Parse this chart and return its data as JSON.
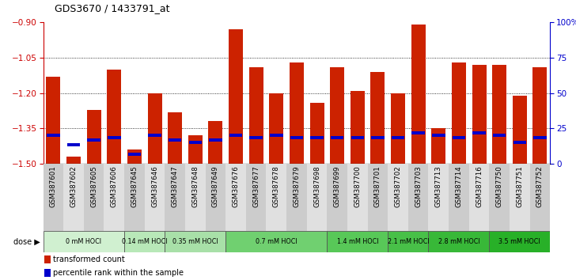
{
  "title": "GDS3670 / 1433791_at",
  "samples": [
    "GSM387601",
    "GSM387602",
    "GSM387605",
    "GSM387606",
    "GSM387645",
    "GSM387646",
    "GSM387647",
    "GSM387648",
    "GSM387649",
    "GSM387676",
    "GSM387677",
    "GSM387678",
    "GSM387679",
    "GSM387698",
    "GSM387699",
    "GSM387700",
    "GSM387701",
    "GSM387702",
    "GSM387703",
    "GSM387713",
    "GSM387714",
    "GSM387716",
    "GSM387750",
    "GSM387751",
    "GSM387752"
  ],
  "red_values": [
    -1.13,
    -1.47,
    -1.27,
    -1.1,
    -1.44,
    -1.2,
    -1.28,
    -1.38,
    -1.32,
    -0.93,
    -1.09,
    -1.2,
    -1.07,
    -1.24,
    -1.09,
    -1.19,
    -1.11,
    -1.2,
    -0.91,
    -1.35,
    -1.07,
    -1.08,
    -1.08,
    -1.21,
    -1.09
  ],
  "blue_values": [
    -1.38,
    -1.42,
    -1.4,
    -1.39,
    -1.46,
    -1.38,
    -1.4,
    -1.41,
    -1.4,
    -1.38,
    -1.39,
    -1.38,
    -1.39,
    -1.39,
    -1.39,
    -1.39,
    -1.39,
    -1.39,
    -1.37,
    -1.38,
    -1.39,
    -1.37,
    -1.38,
    -1.41,
    -1.39
  ],
  "ylim_left": [
    -1.5,
    -0.9
  ],
  "yticks_left": [
    -1.5,
    -1.35,
    -1.2,
    -1.05,
    -0.9
  ],
  "yticks_right": [
    0,
    25,
    50,
    75,
    100
  ],
  "ylabel_left_color": "#cc0000",
  "ylabel_right_color": "#0000cc",
  "bar_color": "#cc2200",
  "blue_dot_color": "#0000cc",
  "dose_groups": [
    {
      "label": "0 mM HOCl",
      "start": 0,
      "end": 4,
      "color": "#d0f0d0"
    },
    {
      "label": "0.14 mM HOCl",
      "start": 4,
      "end": 6,
      "color": "#b8e8b8"
    },
    {
      "label": "0.35 mM HOCl",
      "start": 6,
      "end": 9,
      "color": "#a8e0a8"
    },
    {
      "label": "0.7 mM HOCl",
      "start": 9,
      "end": 14,
      "color": "#70d070"
    },
    {
      "label": "1.4 mM HOCl",
      "start": 14,
      "end": 17,
      "color": "#58c858"
    },
    {
      "label": "2.1 mM HOCl",
      "start": 17,
      "end": 19,
      "color": "#48c048"
    },
    {
      "label": "2.8 mM HOCl",
      "start": 19,
      "end": 22,
      "color": "#38b838"
    },
    {
      "label": "3.5 mM HOCl",
      "start": 22,
      "end": 25,
      "color": "#28b028"
    }
  ],
  "legend_red": "transformed count",
  "legend_blue": "percentile rank within the sample",
  "bar_width": 0.7
}
